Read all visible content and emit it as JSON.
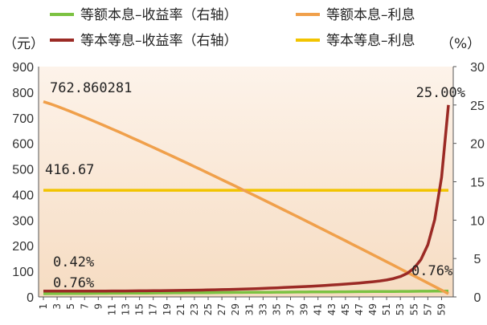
{
  "chart_data": {
    "type": "line",
    "x": [
      1,
      2,
      3,
      4,
      5,
      6,
      7,
      8,
      9,
      10,
      11,
      12,
      13,
      14,
      15,
      16,
      17,
      18,
      19,
      20,
      21,
      22,
      23,
      24,
      25,
      26,
      27,
      28,
      29,
      30,
      31,
      32,
      33,
      34,
      35,
      36,
      37,
      38,
      39,
      40,
      41,
      42,
      43,
      44,
      45,
      46,
      47,
      48,
      49,
      50,
      51,
      52,
      53,
      54,
      55,
      56,
      57,
      58,
      59,
      60
    ],
    "x_tick_labels": [
      "1",
      "3",
      "5",
      "7",
      "9",
      "11",
      "13",
      "15",
      "17",
      "19",
      "21",
      "23",
      "25",
      "27",
      "29",
      "31",
      "33",
      "35",
      "37",
      "39",
      "41",
      "43",
      "45",
      "47",
      "49",
      "51",
      "53",
      "55",
      "57",
      "59"
    ],
    "left_axis": {
      "unit_label": "（元）",
      "ylim": [
        0,
        900
      ],
      "ticks": [
        "0",
        "100",
        "200",
        "300",
        "400",
        "500",
        "600",
        "700",
        "800",
        "900"
      ]
    },
    "right_axis": {
      "unit_label": "（%）",
      "ylim": [
        0,
        30
      ],
      "ticks": [
        "0",
        "5",
        "10",
        "15",
        "20",
        "25",
        "30"
      ]
    },
    "legend": [
      {
        "key": "ep_yield",
        "label": "等额本息–收益率（右轴）",
        "color": "#7cc242"
      },
      {
        "key": "ep_interest",
        "label": "等额本息–利息",
        "color": "#f0a04b"
      },
      {
        "key": "pp_yield",
        "label": "等本等息–收益率（右轴）",
        "color": "#9b2a25"
      },
      {
        "key": "pp_interest",
        "label": "等本等息–利息",
        "color": "#f2c400"
      }
    ],
    "series": [
      {
        "key": "ep_interest",
        "axis": "left",
        "start": 762.860281,
        "end": 12.5
      },
      {
        "key": "pp_interest",
        "axis": "left",
        "constant": 416.67
      },
      {
        "key": "ep_yield",
        "axis": "right",
        "start": 0.42,
        "end": 0.76
      },
      {
        "key": "pp_yield",
        "axis": "right",
        "start": 0.76,
        "end": 25.0
      }
    ],
    "annotations": [
      {
        "key": "ann_ep_interest_start",
        "text": "762.860281"
      },
      {
        "key": "ann_pp_interest",
        "text": "416.67"
      },
      {
        "key": "ann_ep_yield_start",
        "text": "0.42%"
      },
      {
        "key": "ann_pp_yield_start",
        "text": "0.76%"
      },
      {
        "key": "ann_ep_yield_end",
        "text": "0.76%"
      },
      {
        "key": "ann_pp_yield_end",
        "text": "25.00%"
      }
    ],
    "grid": false,
    "legend_position": "top"
  }
}
